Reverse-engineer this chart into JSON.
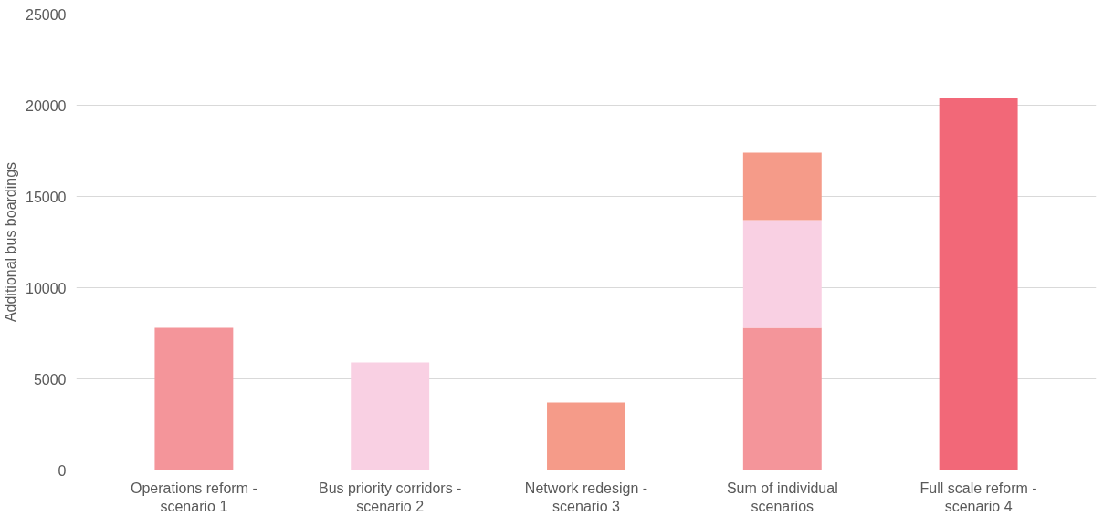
{
  "chart_data": {
    "type": "bar",
    "ylabel": "Additional bus boardings",
    "categories": [
      "Operations reform -\nscenario 1",
      "Bus priority corridors -\nscenario 2",
      "Network redesign -\nscenario 3",
      "Sum of individual\nscenarios",
      "Full scale reform -\nscenario 4"
    ],
    "series": [
      {
        "color": "#f4959a",
        "values": [
          7800,
          null,
          null,
          7800,
          null
        ]
      },
      {
        "color": "#f9d0e3",
        "values": [
          null,
          5900,
          null,
          5900,
          null
        ]
      },
      {
        "color": "#f59b89",
        "values": [
          null,
          null,
          3700,
          3700,
          null
        ]
      },
      {
        "color": "#f26878",
        "values": [
          null,
          null,
          null,
          null,
          20400
        ]
      }
    ],
    "stacked": true,
    "ylim": [
      0,
      25000
    ],
    "yticks": [
      0,
      5000,
      10000,
      15000,
      20000,
      25000
    ],
    "grid": "y"
  }
}
